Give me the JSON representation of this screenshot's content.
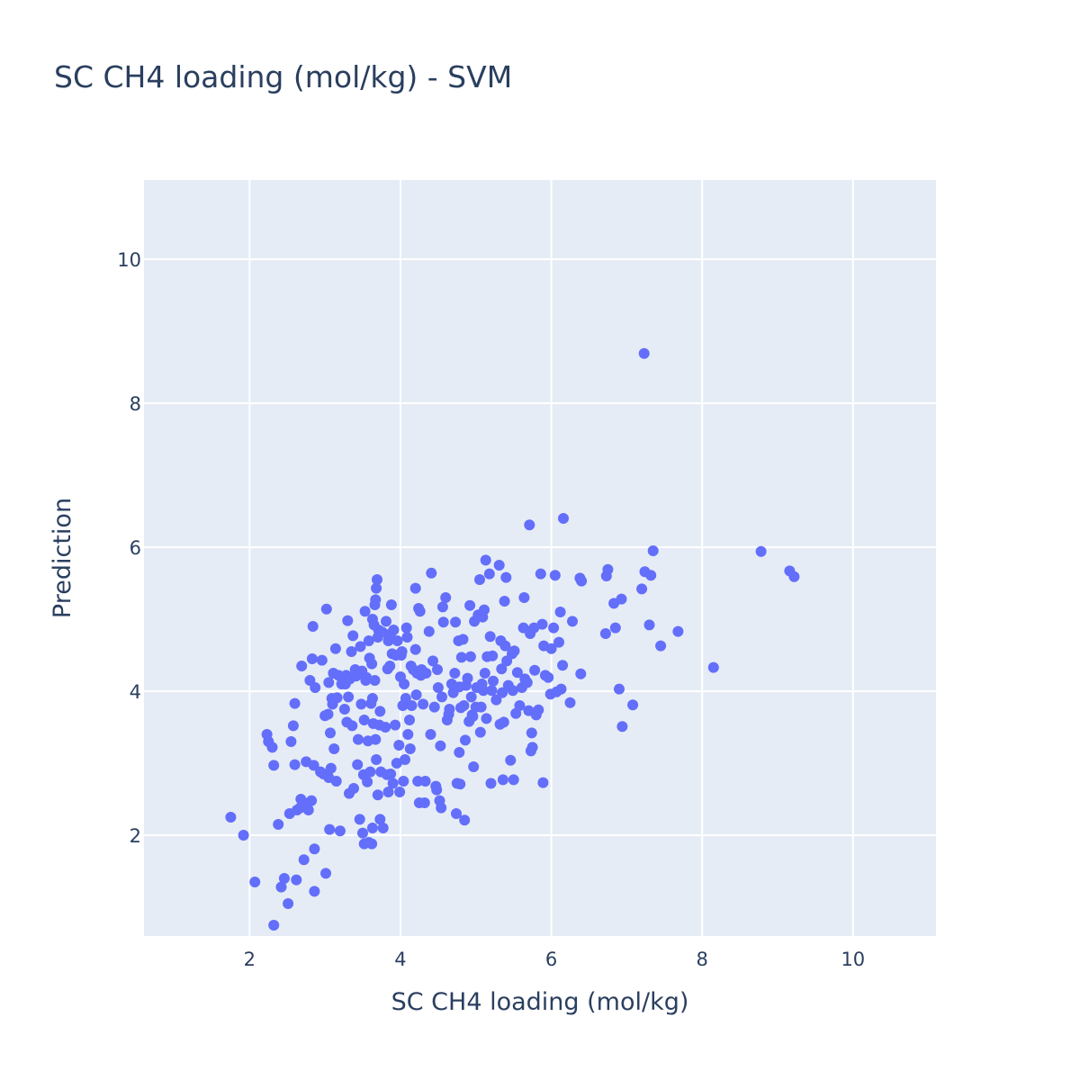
{
  "chart_data": {
    "type": "scatter",
    "title": "SC CH4 loading (mol/kg) - SVM",
    "xlabel": "SC CH4 loading (mol/kg)",
    "ylabel": "Prediction",
    "xlim": [
      0.6,
      11.1
    ],
    "ylim": [
      0.6,
      11.1
    ],
    "xticks": [
      2,
      4,
      6,
      8,
      10
    ],
    "yticks": [
      2,
      4,
      6,
      8,
      10
    ],
    "grid": true,
    "colors": {
      "marker": "#636efa",
      "plot_bg": "#e5ecf6",
      "grid": "#ffffff",
      "text": "#2a3f5f"
    },
    "series": [
      {
        "points": [
          [
            1.75,
            2.25
          ],
          [
            1.92,
            2.0
          ],
          [
            2.07,
            1.35
          ],
          [
            2.23,
            3.4
          ],
          [
            2.25,
            3.3
          ],
          [
            2.3,
            3.22
          ],
          [
            2.32,
            2.97
          ],
          [
            2.32,
            0.75
          ],
          [
            2.38,
            2.15
          ],
          [
            2.42,
            1.28
          ],
          [
            2.46,
            1.4
          ],
          [
            2.51,
            1.05
          ],
          [
            2.53,
            2.3
          ],
          [
            2.55,
            3.3
          ],
          [
            2.58,
            3.52
          ],
          [
            2.6,
            2.98
          ],
          [
            2.6,
            3.83
          ],
          [
            2.62,
            1.38
          ],
          [
            2.63,
            2.35
          ],
          [
            2.67,
            2.38
          ],
          [
            2.68,
            2.5
          ],
          [
            2.69,
            4.35
          ],
          [
            2.72,
            1.66
          ],
          [
            2.72,
            2.45
          ],
          [
            2.75,
            3.02
          ],
          [
            2.78,
            2.35
          ],
          [
            2.8,
            4.15
          ],
          [
            2.82,
            2.48
          ],
          [
            2.83,
            4.45
          ],
          [
            2.84,
            4.9
          ],
          [
            2.85,
            2.97
          ],
          [
            2.86,
            1.22
          ],
          [
            2.86,
            1.81
          ],
          [
            2.87,
            4.05
          ],
          [
            2.94,
            2.88
          ],
          [
            2.96,
            4.43
          ],
          [
            2.98,
            2.85
          ],
          [
            3.0,
            3.66
          ],
          [
            3.01,
            1.47
          ],
          [
            3.02,
            5.14
          ],
          [
            3.04,
            3.68
          ],
          [
            3.05,
            4.12
          ],
          [
            3.05,
            2.8
          ],
          [
            3.06,
            2.08
          ],
          [
            3.07,
            3.42
          ],
          [
            3.08,
            2.93
          ],
          [
            3.09,
            3.9
          ],
          [
            3.1,
            3.82
          ],
          [
            3.11,
            4.25
          ],
          [
            3.12,
            3.2
          ],
          [
            3.14,
            4.59
          ],
          [
            3.15,
            2.75
          ],
          [
            3.16,
            3.91
          ],
          [
            3.18,
            4.22
          ],
          [
            3.2,
            2.06
          ],
          [
            3.22,
            4.1
          ],
          [
            3.25,
            4.18
          ],
          [
            3.26,
            3.75
          ],
          [
            3.27,
            4.1
          ],
          [
            3.28,
            4.22
          ],
          [
            3.29,
            3.57
          ],
          [
            3.3,
            4.98
          ],
          [
            3.31,
            3.92
          ],
          [
            3.32,
            2.58
          ],
          [
            3.33,
            4.17
          ],
          [
            3.35,
            4.55
          ],
          [
            3.36,
            3.52
          ],
          [
            3.37,
            4.77
          ],
          [
            3.38,
            2.65
          ],
          [
            3.4,
            4.3
          ],
          [
            3.41,
            4.21
          ],
          [
            3.43,
            2.98
          ],
          [
            3.44,
            3.33
          ],
          [
            3.45,
            4.24
          ],
          [
            3.46,
            2.22
          ],
          [
            3.47,
            4.62
          ],
          [
            3.48,
            3.82
          ],
          [
            3.49,
            4.28
          ],
          [
            3.5,
            2.03
          ],
          [
            3.51,
            2.84
          ],
          [
            3.52,
            3.6
          ],
          [
            3.52,
            1.88
          ],
          [
            3.53,
            5.11
          ],
          [
            3.54,
            4.15
          ],
          [
            3.55,
            4.19
          ],
          [
            3.56,
            2.74
          ],
          [
            3.57,
            3.31
          ],
          [
            3.58,
            4.7
          ],
          [
            3.58,
            1.9
          ],
          [
            3.59,
            4.46
          ],
          [
            3.6,
            2.88
          ],
          [
            3.61,
            3.83
          ],
          [
            3.62,
            4.38
          ],
          [
            3.62,
            1.88
          ],
          [
            3.63,
            3.9
          ],
          [
            3.63,
            5.0
          ],
          [
            3.63,
            2.1
          ],
          [
            3.64,
            3.55
          ],
          [
            3.65,
            4.92
          ],
          [
            3.66,
            5.2
          ],
          [
            3.66,
            4.15
          ],
          [
            3.67,
            5.27
          ],
          [
            3.67,
            3.33
          ],
          [
            3.68,
            3.05
          ],
          [
            3.68,
            5.43
          ],
          [
            3.69,
            5.55
          ],
          [
            3.7,
            2.56
          ],
          [
            3.7,
            4.75
          ],
          [
            3.71,
            4.85
          ],
          [
            3.72,
            3.53
          ],
          [
            3.73,
            3.72
          ],
          [
            3.73,
            2.22
          ],
          [
            3.74,
            2.88
          ],
          [
            3.76,
            4.82
          ],
          [
            3.77,
            2.1
          ],
          [
            3.8,
            3.5
          ],
          [
            3.81,
            4.97
          ],
          [
            3.82,
            2.84
          ],
          [
            3.83,
            4.31
          ],
          [
            3.84,
            4.7
          ],
          [
            3.84,
            2.6
          ],
          [
            3.86,
            4.35
          ],
          [
            3.87,
            2.85
          ],
          [
            3.87,
            4.8
          ],
          [
            3.88,
            5.2
          ],
          [
            3.89,
            4.52
          ],
          [
            3.9,
            2.72
          ],
          [
            3.91,
            4.85
          ],
          [
            3.93,
            3.53
          ],
          [
            3.94,
            4.5
          ],
          [
            3.95,
            3.0
          ],
          [
            3.96,
            4.7
          ],
          [
            3.98,
            3.25
          ],
          [
            3.99,
            2.6
          ],
          [
            4.0,
            4.2
          ],
          [
            4.01,
            4.5
          ],
          [
            4.02,
            4.55
          ],
          [
            4.03,
            3.8
          ],
          [
            4.04,
            2.75
          ],
          [
            4.05,
            4.1
          ],
          [
            4.06,
            3.05
          ],
          [
            4.07,
            3.9
          ],
          [
            4.08,
            4.88
          ],
          [
            4.09,
            4.75
          ],
          [
            4.1,
            3.4
          ],
          [
            4.12,
            3.6
          ],
          [
            4.13,
            3.2
          ],
          [
            4.14,
            4.35
          ],
          [
            4.15,
            3.8
          ],
          [
            4.17,
            4.3
          ],
          [
            4.2,
            5.43
          ],
          [
            4.2,
            4.58
          ],
          [
            4.21,
            3.95
          ],
          [
            4.22,
            4.25
          ],
          [
            4.23,
            2.75
          ],
          [
            4.24,
            5.15
          ],
          [
            4.25,
            2.45
          ],
          [
            4.26,
            5.11
          ],
          [
            4.27,
            4.22
          ],
          [
            4.28,
            4.3
          ],
          [
            4.3,
            3.82
          ],
          [
            4.32,
            2.45
          ],
          [
            4.33,
            2.75
          ],
          [
            4.34,
            4.25
          ],
          [
            4.38,
            4.83
          ],
          [
            4.4,
            3.4
          ],
          [
            4.41,
            5.64
          ],
          [
            4.43,
            4.42
          ],
          [
            4.45,
            3.78
          ],
          [
            4.47,
            2.68
          ],
          [
            4.48,
            2.63
          ],
          [
            4.49,
            4.3
          ],
          [
            4.5,
            4.05
          ],
          [
            4.52,
            2.48
          ],
          [
            4.53,
            3.24
          ],
          [
            4.54,
            2.38
          ],
          [
            4.55,
            3.92
          ],
          [
            4.56,
            5.17
          ],
          [
            4.57,
            4.96
          ],
          [
            4.6,
            5.3
          ],
          [
            4.62,
            3.6
          ],
          [
            4.64,
            3.68
          ],
          [
            4.65,
            3.75
          ],
          [
            4.68,
            4.1
          ],
          [
            4.7,
            3.98
          ],
          [
            4.72,
            4.25
          ],
          [
            4.73,
            4.96
          ],
          [
            4.74,
            2.3
          ],
          [
            4.75,
            2.72
          ],
          [
            4.77,
            4.7
          ],
          [
            4.78,
            3.15
          ],
          [
            4.78,
            4.06
          ],
          [
            4.79,
            2.71
          ],
          [
            4.8,
            3.77
          ],
          [
            4.81,
            4.47
          ],
          [
            4.83,
            4.72
          ],
          [
            4.84,
            3.8
          ],
          [
            4.85,
            2.21
          ],
          [
            4.86,
            3.32
          ],
          [
            4.87,
            4.08
          ],
          [
            4.89,
            4.18
          ],
          [
            4.91,
            3.58
          ],
          [
            4.92,
            5.19
          ],
          [
            4.93,
            4.48
          ],
          [
            4.94,
            3.92
          ],
          [
            4.95,
            3.67
          ],
          [
            4.96,
            3.65
          ],
          [
            4.97,
            2.95
          ],
          [
            4.98,
            4.97
          ],
          [
            5.0,
            3.78
          ],
          [
            5.01,
            4.05
          ],
          [
            5.03,
            5.06
          ],
          [
            5.05,
            5.55
          ],
          [
            5.06,
            3.43
          ],
          [
            5.07,
            3.78
          ],
          [
            5.08,
            4.1
          ],
          [
            5.09,
            5.03
          ],
          [
            5.1,
            4.01
          ],
          [
            5.11,
            5.13
          ],
          [
            5.12,
            4.25
          ],
          [
            5.13,
            5.82
          ],
          [
            5.14,
            3.62
          ],
          [
            5.15,
            4.48
          ],
          [
            5.18,
            5.63
          ],
          [
            5.19,
            4.76
          ],
          [
            5.2,
            2.72
          ],
          [
            5.21,
            4.01
          ],
          [
            5.22,
            4.49
          ],
          [
            5.23,
            4.14
          ],
          [
            5.27,
            3.88
          ],
          [
            5.31,
            5.75
          ],
          [
            5.32,
            3.54
          ],
          [
            5.33,
            4.7
          ],
          [
            5.34,
            4.31
          ],
          [
            5.35,
            3.98
          ],
          [
            5.36,
            2.77
          ],
          [
            5.37,
            3.57
          ],
          [
            5.38,
            5.25
          ],
          [
            5.39,
            4.63
          ],
          [
            5.4,
            5.58
          ],
          [
            5.41,
            4.42
          ],
          [
            5.43,
            4.08
          ],
          [
            5.46,
            3.04
          ],
          [
            5.48,
            4.52
          ],
          [
            5.49,
            4.01
          ],
          [
            5.5,
            2.77
          ],
          [
            5.51,
            4.56
          ],
          [
            5.53,
            3.69
          ],
          [
            5.55,
            4.26
          ],
          [
            5.58,
            3.8
          ],
          [
            5.61,
            4.05
          ],
          [
            5.63,
            4.88
          ],
          [
            5.64,
            5.3
          ],
          [
            5.65,
            4.17
          ],
          [
            5.68,
            4.12
          ],
          [
            5.7,
            3.73
          ],
          [
            5.71,
            6.31
          ],
          [
            5.72,
            4.8
          ],
          [
            5.73,
            3.17
          ],
          [
            5.74,
            3.42
          ],
          [
            5.75,
            3.22
          ],
          [
            5.77,
            4.88
          ],
          [
            5.78,
            4.29
          ],
          [
            5.8,
            3.67
          ],
          [
            5.83,
            3.74
          ],
          [
            5.86,
            5.63
          ],
          [
            5.88,
            4.93
          ],
          [
            5.89,
            2.73
          ],
          [
            5.9,
            4.63
          ],
          [
            5.92,
            4.22
          ],
          [
            5.96,
            4.19
          ],
          [
            5.99,
            3.96
          ],
          [
            6.0,
            4.59
          ],
          [
            6.03,
            4.88
          ],
          [
            6.05,
            5.61
          ],
          [
            6.07,
            3.99
          ],
          [
            6.1,
            4.68
          ],
          [
            6.12,
            5.1
          ],
          [
            6.13,
            4.03
          ],
          [
            6.15,
            4.36
          ],
          [
            6.16,
            6.4
          ],
          [
            6.25,
            3.84
          ],
          [
            6.28,
            4.97
          ],
          [
            6.38,
            5.57
          ],
          [
            6.39,
            4.24
          ],
          [
            6.4,
            5.53
          ],
          [
            6.72,
            4.8
          ],
          [
            6.73,
            5.6
          ],
          [
            6.75,
            5.69
          ],
          [
            6.83,
            5.22
          ],
          [
            6.85,
            4.88
          ],
          [
            6.9,
            4.03
          ],
          [
            6.93,
            5.28
          ],
          [
            6.94,
            3.51
          ],
          [
            7.08,
            3.81
          ],
          [
            7.2,
            5.42
          ],
          [
            7.23,
            8.69
          ],
          [
            7.24,
            5.66
          ],
          [
            7.3,
            4.92
          ],
          [
            7.32,
            5.61
          ],
          [
            7.35,
            5.95
          ],
          [
            7.45,
            4.63
          ],
          [
            7.68,
            4.83
          ],
          [
            8.15,
            4.33
          ],
          [
            8.78,
            5.94
          ],
          [
            9.16,
            5.67
          ],
          [
            9.22,
            5.59
          ]
        ]
      }
    ]
  }
}
